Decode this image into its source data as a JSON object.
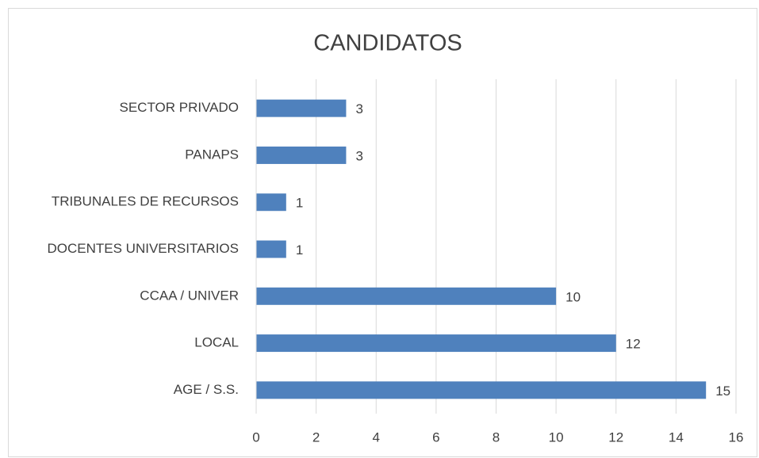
{
  "chart_data": {
    "type": "barh",
    "title": "CANDIDATOS",
    "categories": [
      "SECTOR PRIVADO",
      "PANAPS",
      "TRIBUNALES DE RECURSOS",
      "DOCENTES UNIVERSITARIOS",
      "CCAA / UNIVER",
      "LOCAL",
      "AGE / S.S."
    ],
    "values": [
      3,
      3,
      1,
      1,
      10,
      12,
      15
    ],
    "color": "#4f81bd",
    "xlim": [
      0,
      16
    ],
    "xticks": [
      0,
      2,
      4,
      6,
      8,
      10,
      12,
      14,
      16
    ],
    "grid": true
  }
}
